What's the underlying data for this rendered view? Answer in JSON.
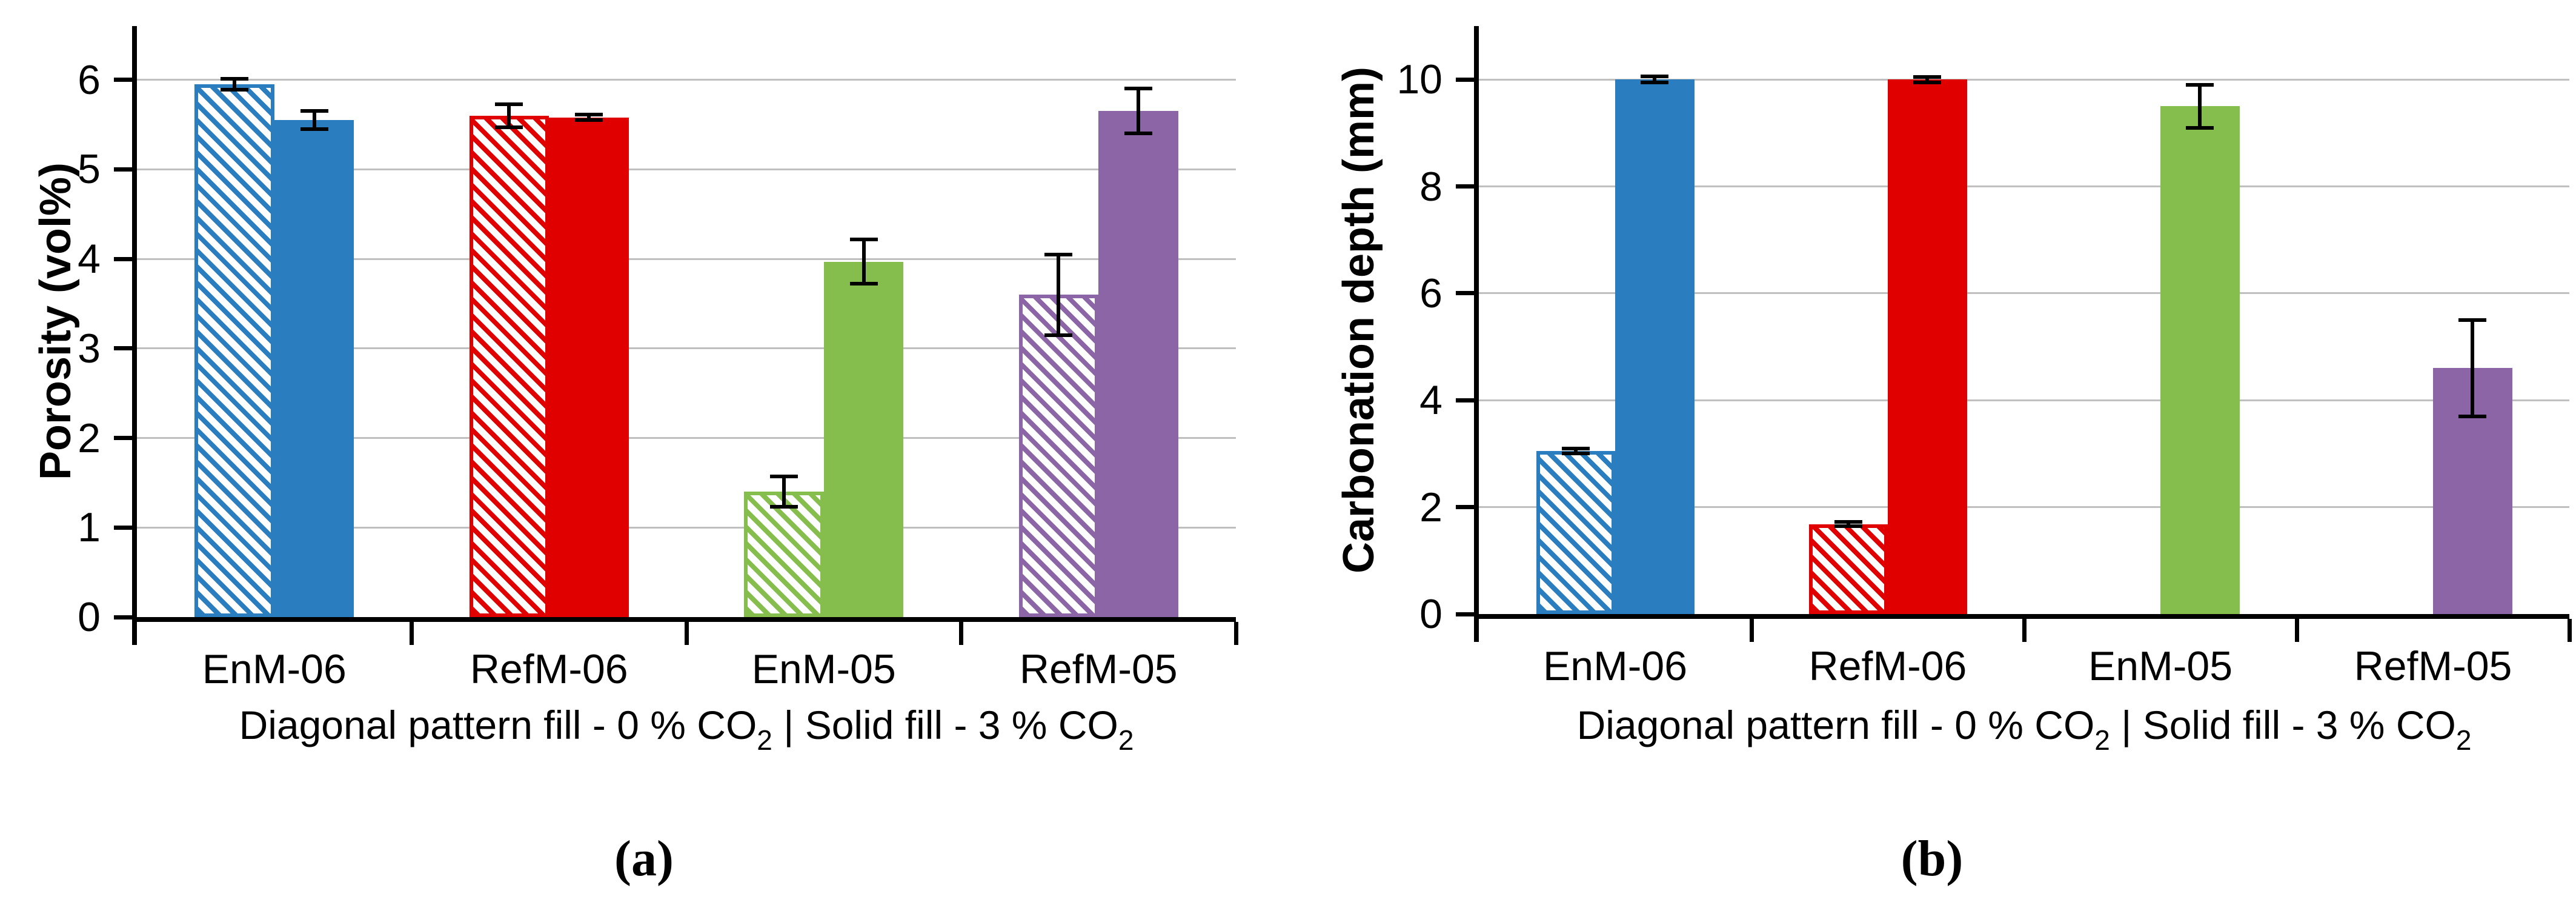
{
  "chart_data": [
    {
      "type": "bar",
      "panel_label": "(a)",
      "title": "",
      "xlabel": "",
      "ylabel": "Porosity (vol%)",
      "categories": [
        "EnM-06",
        "RefM-06",
        "EnM-05",
        "RefM-05"
      ],
      "category_colors": [
        "#2A7EC0",
        "#E00000",
        "#86BE4D",
        "#8B65A5"
      ],
      "yticks": [
        0,
        1,
        2,
        3,
        4,
        5,
        6
      ],
      "ylim": [
        0,
        6.6
      ],
      "grid": true,
      "legend_note": "Diagonal pattern fill - 0 % CO2 | Solid fill - 3 % CO2",
      "caption": {
        "part1": "Diagonal pattern fill - 0 % CO",
        "sub1": "2",
        "part2": " | Solid fill - 3 % CO",
        "sub2": "2"
      },
      "series": [
        {
          "name": "0 % CO2 (diagonal pattern fill)",
          "fill": "hatched",
          "values": [
            5.95,
            5.6,
            1.4,
            3.6
          ],
          "errors": [
            0.06,
            0.13,
            0.17,
            0.45
          ]
        },
        {
          "name": "3 % CO2 (solid fill)",
          "fill": "solid",
          "values": [
            5.55,
            5.58,
            3.97,
            5.65
          ],
          "errors": [
            0.1,
            0.03,
            0.25,
            0.25
          ]
        }
      ]
    },
    {
      "type": "bar",
      "panel_label": "(b)",
      "title": "",
      "xlabel": "",
      "ylabel": "Carbonation depth (mm)",
      "categories": [
        "EnM-06",
        "RefM-06",
        "EnM-05",
        "RefM-05"
      ],
      "category_colors": [
        "#2A7EC0",
        "#E00000",
        "#86BE4D",
        "#8B65A5"
      ],
      "yticks": [
        0,
        2,
        4,
        6,
        8,
        10
      ],
      "ylim": [
        0,
        11
      ],
      "grid": true,
      "legend_note": "Diagonal pattern fill - 0 % CO2 | Solid fill - 3 % CO2",
      "caption": {
        "part1": "Diagonal pattern fill - 0 % CO",
        "sub1": "2",
        "part2": " | Solid fill - 3 % CO",
        "sub2": "2"
      },
      "series": [
        {
          "name": "0 % CO2 (diagonal pattern fill)",
          "fill": "hatched",
          "values": [
            3.05,
            1.68,
            0,
            0
          ],
          "errors": [
            0.05,
            0.04,
            0,
            0
          ]
        },
        {
          "name": "3 % CO2 (solid fill)",
          "fill": "solid",
          "values": [
            10,
            10,
            9.5,
            4.6
          ],
          "errors": [
            0.06,
            0.05,
            0.4,
            0.9
          ]
        }
      ]
    }
  ]
}
